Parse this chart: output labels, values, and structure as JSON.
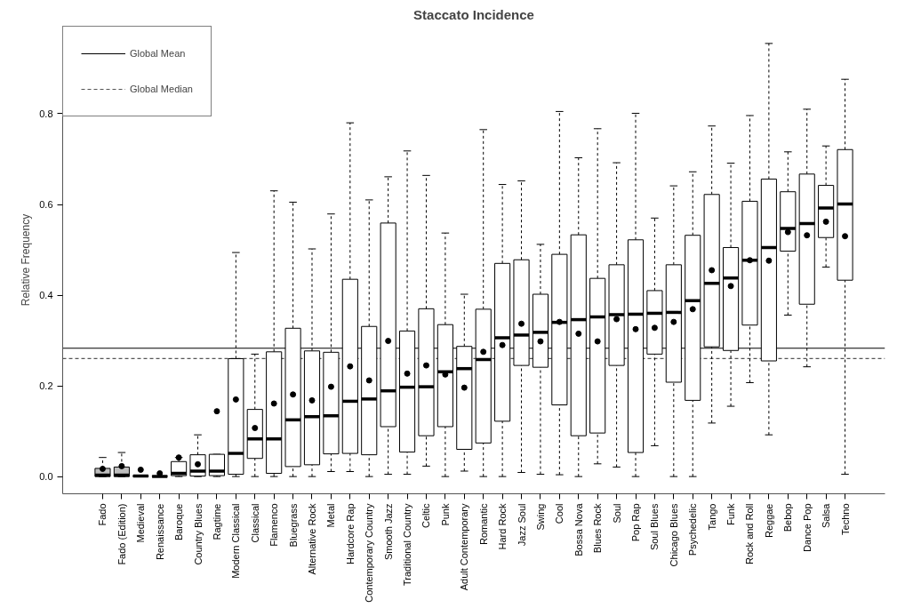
{
  "chart_data": {
    "type": "box",
    "title": "Staccato Incidence",
    "ylabel": "Relative Frequency",
    "categories": [
      "Fado",
      "Fado (Edition)",
      "Medieval",
      "Renaissance",
      "Baroque",
      "Country Blues",
      "Ragtime",
      "Modern Classical",
      "Classical",
      "Flamenco",
      "Bluegrass",
      "Alternative Rock",
      "Metal",
      "Hardcore Rap",
      "Contemporary Country",
      "Smooth Jazz",
      "Traditional Country",
      "Celtic",
      "Punk",
      "Adult Contemporary",
      "Romantic",
      "Hard Rock",
      "Jazz Soul",
      "Swing",
      "Cool",
      "Bossa Nova",
      "Blues Rock",
      "Soul",
      "Pop Rap",
      "Soul Blues",
      "Chicago Blues",
      "Psychedelic",
      "Tango",
      "Funk",
      "Rock and Roll",
      "Reggae",
      "Bebop",
      "Dance Pop",
      "Salsa",
      "Techno"
    ],
    "boxes": [
      {
        "low": 0,
        "q1": 0,
        "median": 0.003,
        "q3": 0.018,
        "high": 0.042,
        "mean": 0.017
      },
      {
        "low": 0,
        "q1": 0,
        "median": 0.003,
        "q3": 0.021,
        "high": 0.053,
        "mean": 0.023
      },
      {
        "low": 0,
        "q1": 0,
        "median": 0.001,
        "q3": 0.002,
        "high": 0.002,
        "mean": 0.015
      },
      {
        "low": 0,
        "q1": 0,
        "median": 0,
        "q3": 0.001,
        "high": 0.001,
        "mean": 0.007
      },
      {
        "low": 0,
        "q1": 0.002,
        "median": 0.007,
        "q3": 0.033,
        "high": 0.042,
        "mean": 0.042
      },
      {
        "low": 0,
        "q1": 0.001,
        "median": 0.012,
        "q3": 0.048,
        "high": 0.092,
        "mean": 0.027
      },
      {
        "low": 0,
        "q1": 0.002,
        "median": 0.012,
        "q3": 0.049,
        "high": 0.049,
        "mean": 0.144
      },
      {
        "low": 0,
        "q1": 0.005,
        "median": 0.051,
        "q3": 0.26,
        "high": 0.494,
        "mean": 0.17
      },
      {
        "low": 0,
        "q1": 0.04,
        "median": 0.083,
        "q3": 0.148,
        "high": 0.27,
        "mean": 0.107
      },
      {
        "low": 0,
        "q1": 0.007,
        "median": 0.083,
        "q3": 0.275,
        "high": 0.63,
        "mean": 0.161
      },
      {
        "low": 0,
        "q1": 0.022,
        "median": 0.125,
        "q3": 0.327,
        "high": 0.605,
        "mean": 0.181
      },
      {
        "low": 0,
        "q1": 0.026,
        "median": 0.132,
        "q3": 0.277,
        "high": 0.502,
        "mean": 0.168
      },
      {
        "low": 0.011,
        "q1": 0.05,
        "median": 0.134,
        "q3": 0.274,
        "high": 0.579,
        "mean": 0.198
      },
      {
        "low": 0.011,
        "q1": 0.051,
        "median": 0.166,
        "q3": 0.435,
        "high": 0.78,
        "mean": 0.243
      },
      {
        "low": 0,
        "q1": 0.048,
        "median": 0.171,
        "q3": 0.331,
        "high": 0.61,
        "mean": 0.212
      },
      {
        "low": 0.005,
        "q1": 0.11,
        "median": 0.189,
        "q3": 0.559,
        "high": 0.661,
        "mean": 0.299
      },
      {
        "low": 0.005,
        "q1": 0.054,
        "median": 0.197,
        "q3": 0.321,
        "high": 0.718,
        "mean": 0.227
      },
      {
        "low": 0.023,
        "q1": 0.09,
        "median": 0.198,
        "q3": 0.37,
        "high": 0.664,
        "mean": 0.245
      },
      {
        "low": 0,
        "q1": 0.11,
        "median": 0.231,
        "q3": 0.335,
        "high": 0.537,
        "mean": 0.225
      },
      {
        "low": 0.012,
        "q1": 0.06,
        "median": 0.238,
        "q3": 0.287,
        "high": 0.402,
        "mean": 0.196
      },
      {
        "low": 0,
        "q1": 0.074,
        "median": 0.258,
        "q3": 0.369,
        "high": 0.765,
        "mean": 0.275
      },
      {
        "low": 0,
        "q1": 0.122,
        "median": 0.306,
        "q3": 0.47,
        "high": 0.644,
        "mean": 0.29
      },
      {
        "low": 0.009,
        "q1": 0.245,
        "median": 0.312,
        "q3": 0.478,
        "high": 0.652,
        "mean": 0.337
      },
      {
        "low": 0.005,
        "q1": 0.241,
        "median": 0.318,
        "q3": 0.402,
        "high": 0.512,
        "mean": 0.298
      },
      {
        "low": 0.004,
        "q1": 0.158,
        "median": 0.34,
        "q3": 0.49,
        "high": 0.805,
        "mean": 0.341
      },
      {
        "low": 0,
        "q1": 0.09,
        "median": 0.346,
        "q3": 0.533,
        "high": 0.703,
        "mean": 0.315
      },
      {
        "low": 0.028,
        "q1": 0.096,
        "median": 0.352,
        "q3": 0.437,
        "high": 0.767,
        "mean": 0.298
      },
      {
        "low": 0.021,
        "q1": 0.245,
        "median": 0.357,
        "q3": 0.467,
        "high": 0.692,
        "mean": 0.347
      },
      {
        "low": 0,
        "q1": 0.053,
        "median": 0.358,
        "q3": 0.522,
        "high": 0.801,
        "mean": 0.325
      },
      {
        "low": 0.068,
        "q1": 0.27,
        "median": 0.36,
        "q3": 0.41,
        "high": 0.57,
        "mean": 0.328
      },
      {
        "low": 0,
        "q1": 0.208,
        "median": 0.362,
        "q3": 0.467,
        "high": 0.641,
        "mean": 0.341
      },
      {
        "low": 0,
        "q1": 0.168,
        "median": 0.388,
        "q3": 0.532,
        "high": 0.672,
        "mean": 0.369
      },
      {
        "low": 0.118,
        "q1": 0.286,
        "median": 0.426,
        "q3": 0.622,
        "high": 0.773,
        "mean": 0.455
      },
      {
        "low": 0.155,
        "q1": 0.278,
        "median": 0.438,
        "q3": 0.505,
        "high": 0.691,
        "mean": 0.42
      },
      {
        "low": 0.207,
        "q1": 0.334,
        "median": 0.477,
        "q3": 0.607,
        "high": 0.796,
        "mean": 0.477
      },
      {
        "low": 0.092,
        "q1": 0.255,
        "median": 0.505,
        "q3": 0.656,
        "high": 0.955,
        "mean": 0.476
      },
      {
        "low": 0.356,
        "q1": 0.497,
        "median": 0.547,
        "q3": 0.628,
        "high": 0.716,
        "mean": 0.539
      },
      {
        "low": 0.242,
        "q1": 0.38,
        "median": 0.558,
        "q3": 0.667,
        "high": 0.81,
        "mean": 0.532
      },
      {
        "low": 0.462,
        "q1": 0.527,
        "median": 0.592,
        "q3": 0.642,
        "high": 0.729,
        "mean": 0.562
      },
      {
        "low": 0.005,
        "q1": 0.433,
        "median": 0.601,
        "q3": 0.721,
        "high": 0.876,
        "mean": 0.53
      }
    ],
    "colors": [
      "#bebebe",
      "#bebebe",
      "#ffffff",
      "#ffffff",
      "#ffffff",
      "#ffffff",
      "#ffffff",
      "#ffffff",
      "#ffffff",
      "#ffffff",
      "#ffffff",
      "#ffffff",
      "#ffffff",
      "#ffffff",
      "#ffffff",
      "#ffffff",
      "#ffffff",
      "#ffffff",
      "#ffffff",
      "#ffffff",
      "#ffffff",
      "#ffffff",
      "#ffffff",
      "#ffffff",
      "#ffffff",
      "#ffffff",
      "#ffffff",
      "#ffffff",
      "#ffffff",
      "#ffffff",
      "#ffffff",
      "#ffffff",
      "#ffffff",
      "#ffffff",
      "#ffffff",
      "#ffffff",
      "#ffffff",
      "#ffffff",
      "#ffffff",
      "#ffffff"
    ],
    "ylim": [
      -0.038,
      0.993
    ],
    "yticks": [
      {
        "value": 0,
        "label": "0.0"
      },
      {
        "value": 0.2,
        "label": "0.2"
      },
      {
        "value": 0.4,
        "label": "0.4"
      },
      {
        "value": 0.6,
        "label": "0.6"
      },
      {
        "value": 0.8,
        "label": "0.8"
      }
    ],
    "ref_lines": [
      {
        "axis": "y",
        "value": 0.283,
        "label": "Global Mean",
        "line_style": "solid",
        "color": "#000000"
      },
      {
        "axis": "y",
        "value": 0.26,
        "label": "Global Median",
        "line_style": "dashed",
        "color": "#555555"
      }
    ],
    "legend": "top left",
    "grid": false
  }
}
